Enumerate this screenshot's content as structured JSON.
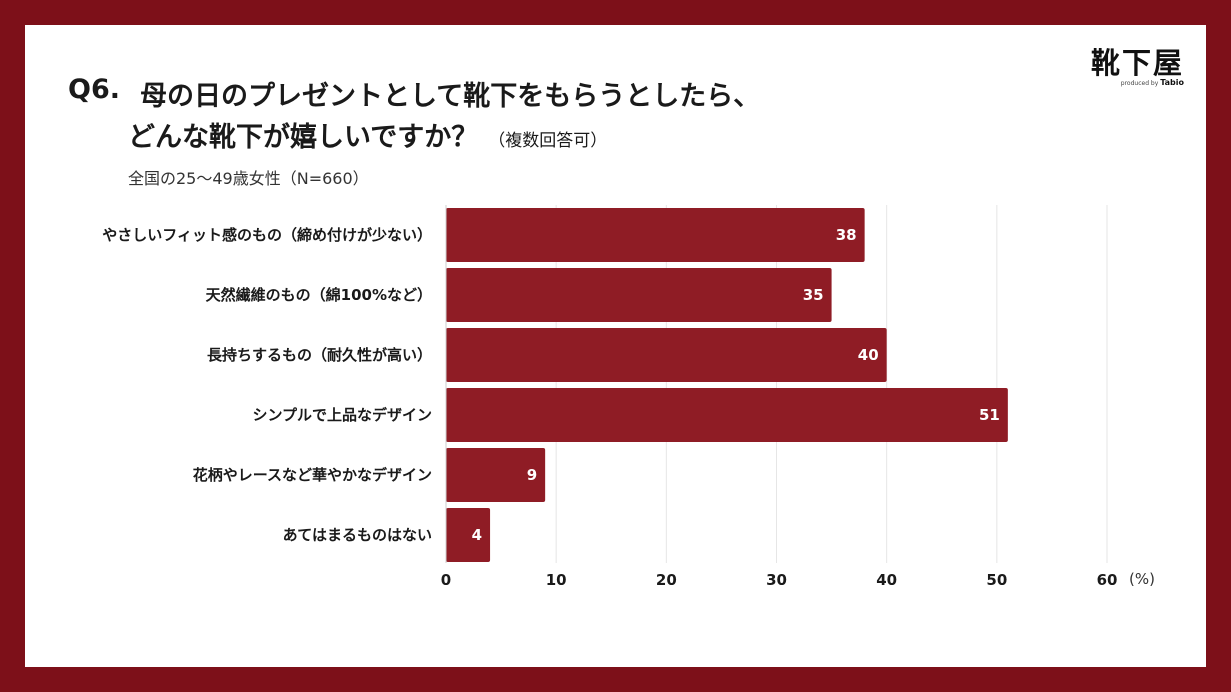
{
  "header": {
    "question_number": "Q6.",
    "title_line1": "母の日のプレゼントとして靴下をもらうとしたら、",
    "title_line2": "どんな靴下が嬉しいですか？",
    "title_note": "（複数回答可）",
    "subtitle": "全国の25〜49歳女性（N=660）"
  },
  "logo": {
    "brand": "靴下屋",
    "produced_by": "produced by",
    "partner": "Tabio"
  },
  "colors": {
    "frame": "#7d1019",
    "bar": "#8f1c25",
    "grid": "#e6e6e6"
  },
  "chart_data": {
    "type": "bar",
    "orientation": "horizontal",
    "categories": [
      "やさしいフィット感のもの（締め付けが少ない）",
      "天然繊維のもの（綿100%など）",
      "長持ちするもの（耐久性が高い）",
      "シンプルで上品なデザイン",
      "花柄やレースなど華やかなデザイン",
      "あてはまるものはない"
    ],
    "values": [
      38,
      35,
      40,
      51,
      9,
      4
    ],
    "xlim": [
      0,
      60
    ],
    "xticks": [
      0,
      10,
      20,
      30,
      40,
      50,
      60
    ],
    "unit": "(%)",
    "grid": true
  }
}
